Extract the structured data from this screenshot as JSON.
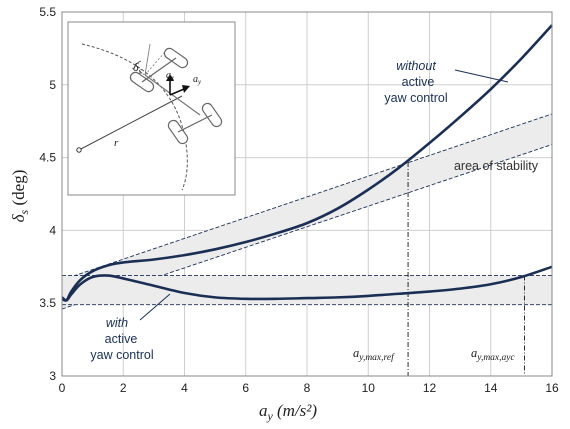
{
  "chart_data": {
    "type": "line",
    "xlabel_main": "a",
    "xlabel_sub": "y",
    "xlabel_unit": " (m/s²)",
    "ylabel_main": "δ",
    "ylabel_sub": "s",
    "ylabel_unit": " (deg)",
    "xlim": [
      0,
      16
    ],
    "ylim": [
      3,
      5.5
    ],
    "x_ticks": [
      "0",
      "2",
      "4",
      "6",
      "8",
      "10",
      "12",
      "14",
      "16"
    ],
    "y_ticks": [
      "3",
      "3.5",
      "4",
      "4.5",
      "5",
      "5.5"
    ],
    "grid": true,
    "series": [
      {
        "x": [
          0,
          0.15,
          0.3,
          0.6,
          1,
          1.5,
          2,
          3,
          4,
          5,
          6,
          7,
          8,
          9,
          10,
          11,
          12,
          13,
          14,
          15,
          16
        ],
        "values": [
          3.53,
          3.52,
          3.58,
          3.66,
          3.72,
          3.76,
          3.78,
          3.8,
          3.83,
          3.87,
          3.92,
          3.98,
          4.05,
          4.15,
          4.28,
          4.43,
          4.6,
          4.78,
          4.97,
          5.18,
          5.41
        ]
      },
      {
        "x": [
          0,
          0.15,
          0.3,
          0.6,
          1,
          1.5,
          2,
          3,
          4,
          5,
          6,
          7,
          8,
          9,
          10,
          11,
          12,
          13,
          14,
          15,
          16
        ],
        "values": [
          3.54,
          3.52,
          3.56,
          3.63,
          3.68,
          3.69,
          3.67,
          3.62,
          3.57,
          3.54,
          3.53,
          3.53,
          3.535,
          3.54,
          3.55,
          3.565,
          3.58,
          3.6,
          3.63,
          3.68,
          3.75
        ]
      }
    ],
    "bands": [
      {
        "label": "area of stability",
        "lower": [
          [
            0,
            3.46
          ],
          [
            16,
            4.59
          ]
        ],
        "upper": [
          [
            0,
            3.66
          ],
          [
            16,
            4.8
          ]
        ]
      },
      {
        "label": "",
        "lower": [
          [
            0,
            3.49
          ],
          [
            16,
            3.49
          ]
        ],
        "upper": [
          [
            0,
            3.69
          ],
          [
            16,
            3.69
          ]
        ]
      }
    ],
    "markers": [
      {
        "x": 11.3,
        "y": 4.47,
        "label_main": "a",
        "label_sub": "y,max,ref"
      },
      {
        "x": 15.1,
        "y": 3.69,
        "label_main": "a",
        "label_sub": "y,max,ayc"
      }
    ],
    "annotations": {
      "without_italic": "without",
      "without_line2": "active",
      "without_line3": "yaw control",
      "with_italic": "with",
      "with_line2": "active",
      "with_line3": "yaw control",
      "area": "area of stability"
    },
    "inset_labels": {
      "delta_main": "δ",
      "delta_sub": "s",
      "ax_main": "a",
      "ax_sub": "x",
      "ay_main": "a",
      "ay_sub": "y",
      "r": "r"
    },
    "colors": {
      "curve": "#1b2f55",
      "band": "#ececec"
    }
  }
}
